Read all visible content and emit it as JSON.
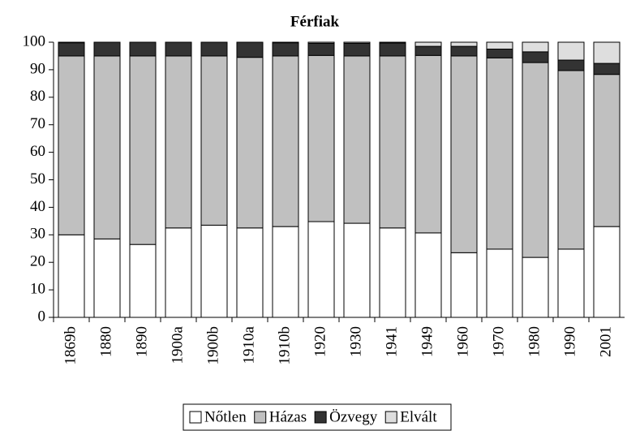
{
  "chart_data": {
    "type": "stacked_bar",
    "title": "Férfiak",
    "categories": [
      "1869b",
      "1880",
      "1890",
      "1900a",
      "1900b",
      "1910a",
      "1910b",
      "1920",
      "1930",
      "1941",
      "1949",
      "1960",
      "1970",
      "1980",
      "1990",
      "2001"
    ],
    "series": [
      {
        "name": "Nőtlen",
        "color": "#ffffff",
        "values": [
          30,
          28.5,
          26.5,
          32.5,
          33.5,
          32.5,
          33,
          34.8,
          34.2,
          32.5,
          30.7,
          23.5,
          24.8,
          21.8,
          24.8,
          33
        ]
      },
      {
        "name": "Házas",
        "color": "#c0c0c0",
        "values": [
          65,
          66.5,
          68.5,
          62.5,
          61.5,
          62,
          62,
          60.4,
          60.8,
          62.5,
          64.5,
          71.5,
          69.5,
          70.8,
          64.9,
          55.3
        ]
      },
      {
        "name": "Özvegy",
        "color": "#333333",
        "values": [
          4.8,
          5,
          5,
          5,
          5,
          5.5,
          4.8,
          4.4,
          4.6,
          4.7,
          3.3,
          3.5,
          3.2,
          3.9,
          3.8,
          4
        ]
      },
      {
        "name": "Elvált",
        "color": "#dedede",
        "values": [
          0.2,
          0,
          0,
          0,
          0,
          0,
          0.2,
          0.4,
          0.4,
          0.3,
          1.5,
          1.5,
          2.5,
          3.5,
          6.5,
          7.7
        ]
      }
    ],
    "ylim": [
      0,
      100
    ],
    "yticks": [
      0,
      10,
      20,
      30,
      40,
      50,
      60,
      70,
      80,
      90,
      100
    ],
    "grid": false,
    "legend": "bottom"
  }
}
